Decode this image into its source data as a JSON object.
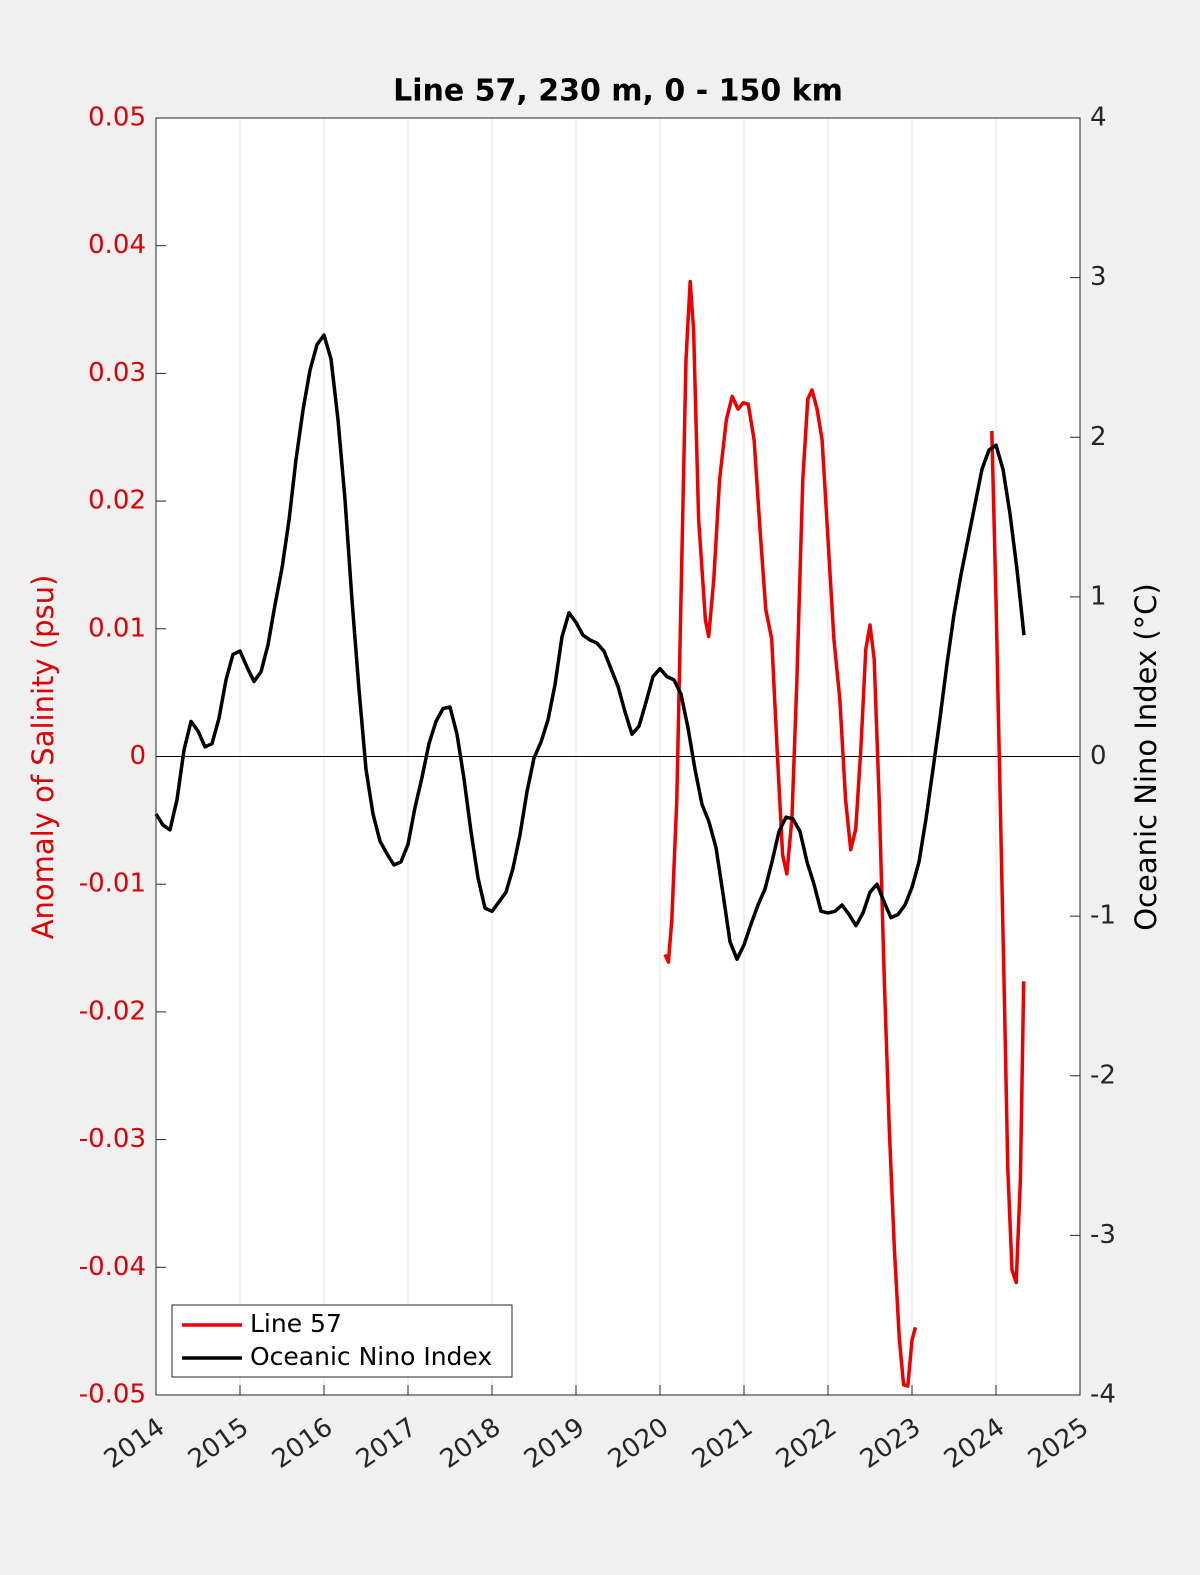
{
  "chart_data": {
    "type": "line",
    "title": "Line 57, 230 m, 0 - 150 km",
    "ylabel": "Anomaly of Salinity (psu)",
    "y2label": "Oceanic Nino Index (°C)",
    "xlim": [
      2014,
      2025
    ],
    "xticks": [
      2014,
      2015,
      2016,
      2017,
      2018,
      2019,
      2020,
      2021,
      2022,
      2023,
      2024,
      2025
    ],
    "ylim": [
      -0.05,
      0.05
    ],
    "yticks": [
      -0.05,
      -0.04,
      -0.03,
      -0.02,
      -0.01,
      0,
      0.01,
      0.02,
      0.03,
      0.04,
      0.05
    ],
    "y2lim": [
      -4,
      4
    ],
    "y2ticks": [
      -4,
      -3,
      -2,
      -1,
      0,
      1,
      2,
      3,
      4
    ],
    "grid": true,
    "legend": "lower left",
    "ycolor": "#e00000",
    "series": [
      {
        "name": "Line 57",
        "color": "#ee0000",
        "x": [
          2020.06,
          2020.1,
          2020.14,
          2020.2,
          2020.26,
          2020.31,
          2020.36,
          2020.4,
          2020.46,
          2020.54,
          2020.58,
          2020.64,
          2020.71,
          2020.79,
          2020.86,
          2020.93,
          2020.99,
          2021.05,
          2021.12,
          2021.19,
          2021.26,
          2021.33,
          2021.4,
          2021.46,
          2021.51,
          2021.57,
          2021.63,
          2021.7,
          2021.76,
          2021.81,
          2021.87,
          2021.93,
          2022.0,
          2022.07,
          2022.14,
          2022.21,
          2022.27,
          2022.33,
          2022.39,
          2022.45,
          2022.5,
          2022.55,
          2022.61,
          2022.67,
          2022.73,
          2022.79,
          2022.85,
          2022.9,
          2022.95,
          2023.0,
          2023.04,
          2023.5,
          2023.95,
          2024.0,
          2024.05,
          2024.1,
          2024.14,
          2024.19,
          2024.24,
          2024.29,
          2024.33
        ],
        "values": [
          -0.0155,
          -0.0161,
          -0.0128,
          -0.0034,
          0.0154,
          0.0311,
          0.0372,
          0.0334,
          0.0186,
          0.0107,
          0.0094,
          0.0139,
          0.0217,
          0.0264,
          0.0282,
          0.0272,
          0.0277,
          0.0276,
          0.0248,
          0.0178,
          0.0115,
          0.0092,
          -0.0002,
          -0.0077,
          -0.0092,
          -0.0049,
          0.006,
          0.0217,
          0.028,
          0.0287,
          0.0272,
          0.0248,
          0.017,
          0.0092,
          0.0045,
          -0.0034,
          -0.0073,
          -0.0057,
          0.0005,
          0.0084,
          0.0103,
          0.0076,
          -0.0034,
          -0.0175,
          -0.0292,
          -0.0386,
          -0.0457,
          -0.0492,
          -0.0493,
          -0.0457,
          -0.0447,
          null,
          0.0255,
          0.0123,
          -0.0034,
          -0.019,
          -0.0323,
          -0.0402,
          -0.0412,
          -0.0331,
          -0.0176
        ]
      },
      {
        "name": "Oceanic Nino Index",
        "color": "#000000",
        "axis": "y2",
        "x": [
          2014,
          2014.083,
          2014.167,
          2014.25,
          2014.333,
          2014.417,
          2014.5,
          2014.583,
          2014.667,
          2014.75,
          2014.833,
          2014.917,
          2015,
          2015.083,
          2015.167,
          2015.25,
          2015.333,
          2015.417,
          2015.5,
          2015.583,
          2015.667,
          2015.75,
          2015.833,
          2015.917,
          2016,
          2016.083,
          2016.167,
          2016.25,
          2016.333,
          2016.417,
          2016.5,
          2016.583,
          2016.667,
          2016.75,
          2016.833,
          2016.917,
          2017,
          2017.083,
          2017.167,
          2017.25,
          2017.333,
          2017.417,
          2017.5,
          2017.583,
          2017.667,
          2017.75,
          2017.833,
          2017.917,
          2018,
          2018.083,
          2018.167,
          2018.25,
          2018.333,
          2018.417,
          2018.5,
          2018.583,
          2018.667,
          2018.75,
          2018.833,
          2018.917,
          2019,
          2019.083,
          2019.167,
          2019.25,
          2019.333,
          2019.417,
          2019.5,
          2019.583,
          2019.667,
          2019.75,
          2019.833,
          2019.917,
          2020,
          2020.083,
          2020.167,
          2020.25,
          2020.333,
          2020.417,
          2020.5,
          2020.583,
          2020.667,
          2020.75,
          2020.833,
          2020.917,
          2021,
          2021.083,
          2021.167,
          2021.25,
          2021.333,
          2021.417,
          2021.5,
          2021.583,
          2021.667,
          2021.75,
          2021.833,
          2021.917,
          2022,
          2022.083,
          2022.167,
          2022.25,
          2022.333,
          2022.417,
          2022.5,
          2022.583,
          2022.667,
          2022.75,
          2022.833,
          2022.917,
          2023,
          2023.083,
          2023.167,
          2023.25,
          2023.333,
          2023.417,
          2023.5,
          2023.583,
          2023.667,
          2023.75,
          2023.833,
          2023.917,
          2024,
          2024.083,
          2024.167,
          2024.25,
          2024.333
        ],
        "values": [
          -0.36,
          -0.43,
          -0.46,
          -0.27,
          0.04,
          0.22,
          0.16,
          0.06,
          0.08,
          0.24,
          0.48,
          0.64,
          0.66,
          0.56,
          0.47,
          0.53,
          0.7,
          0.95,
          1.18,
          1.48,
          1.86,
          2.17,
          2.42,
          2.58,
          2.64,
          2.49,
          2.11,
          1.61,
          0.98,
          0.42,
          -0.08,
          -0.36,
          -0.53,
          -0.61,
          -0.68,
          -0.66,
          -0.55,
          -0.32,
          -0.13,
          0.08,
          0.22,
          0.3,
          0.31,
          0.14,
          -0.14,
          -0.47,
          -0.76,
          -0.95,
          -0.97,
          -0.91,
          -0.85,
          -0.7,
          -0.49,
          -0.22,
          -0.01,
          0.09,
          0.23,
          0.45,
          0.75,
          0.9,
          0.84,
          0.76,
          0.73,
          0.71,
          0.66,
          0.55,
          0.44,
          0.28,
          0.14,
          0.19,
          0.34,
          0.5,
          0.55,
          0.5,
          0.48,
          0.39,
          0.18,
          -0.08,
          -0.3,
          -0.41,
          -0.57,
          -0.86,
          -1.16,
          -1.27,
          -1.18,
          -1.05,
          -0.93,
          -0.83,
          -0.66,
          -0.47,
          -0.38,
          -0.39,
          -0.47,
          -0.66,
          -0.8,
          -0.97,
          -0.98,
          -0.97,
          -0.93,
          -0.99,
          -1.06,
          -0.98,
          -0.85,
          -0.8,
          -0.91,
          -1.01,
          -0.99,
          -0.93,
          -0.82,
          -0.66,
          -0.39,
          -0.08,
          0.24,
          0.58,
          0.89,
          1.14,
          1.36,
          1.58,
          1.8,
          1.92,
          1.95,
          1.8,
          1.52,
          1.17,
          0.76
        ]
      }
    ]
  }
}
